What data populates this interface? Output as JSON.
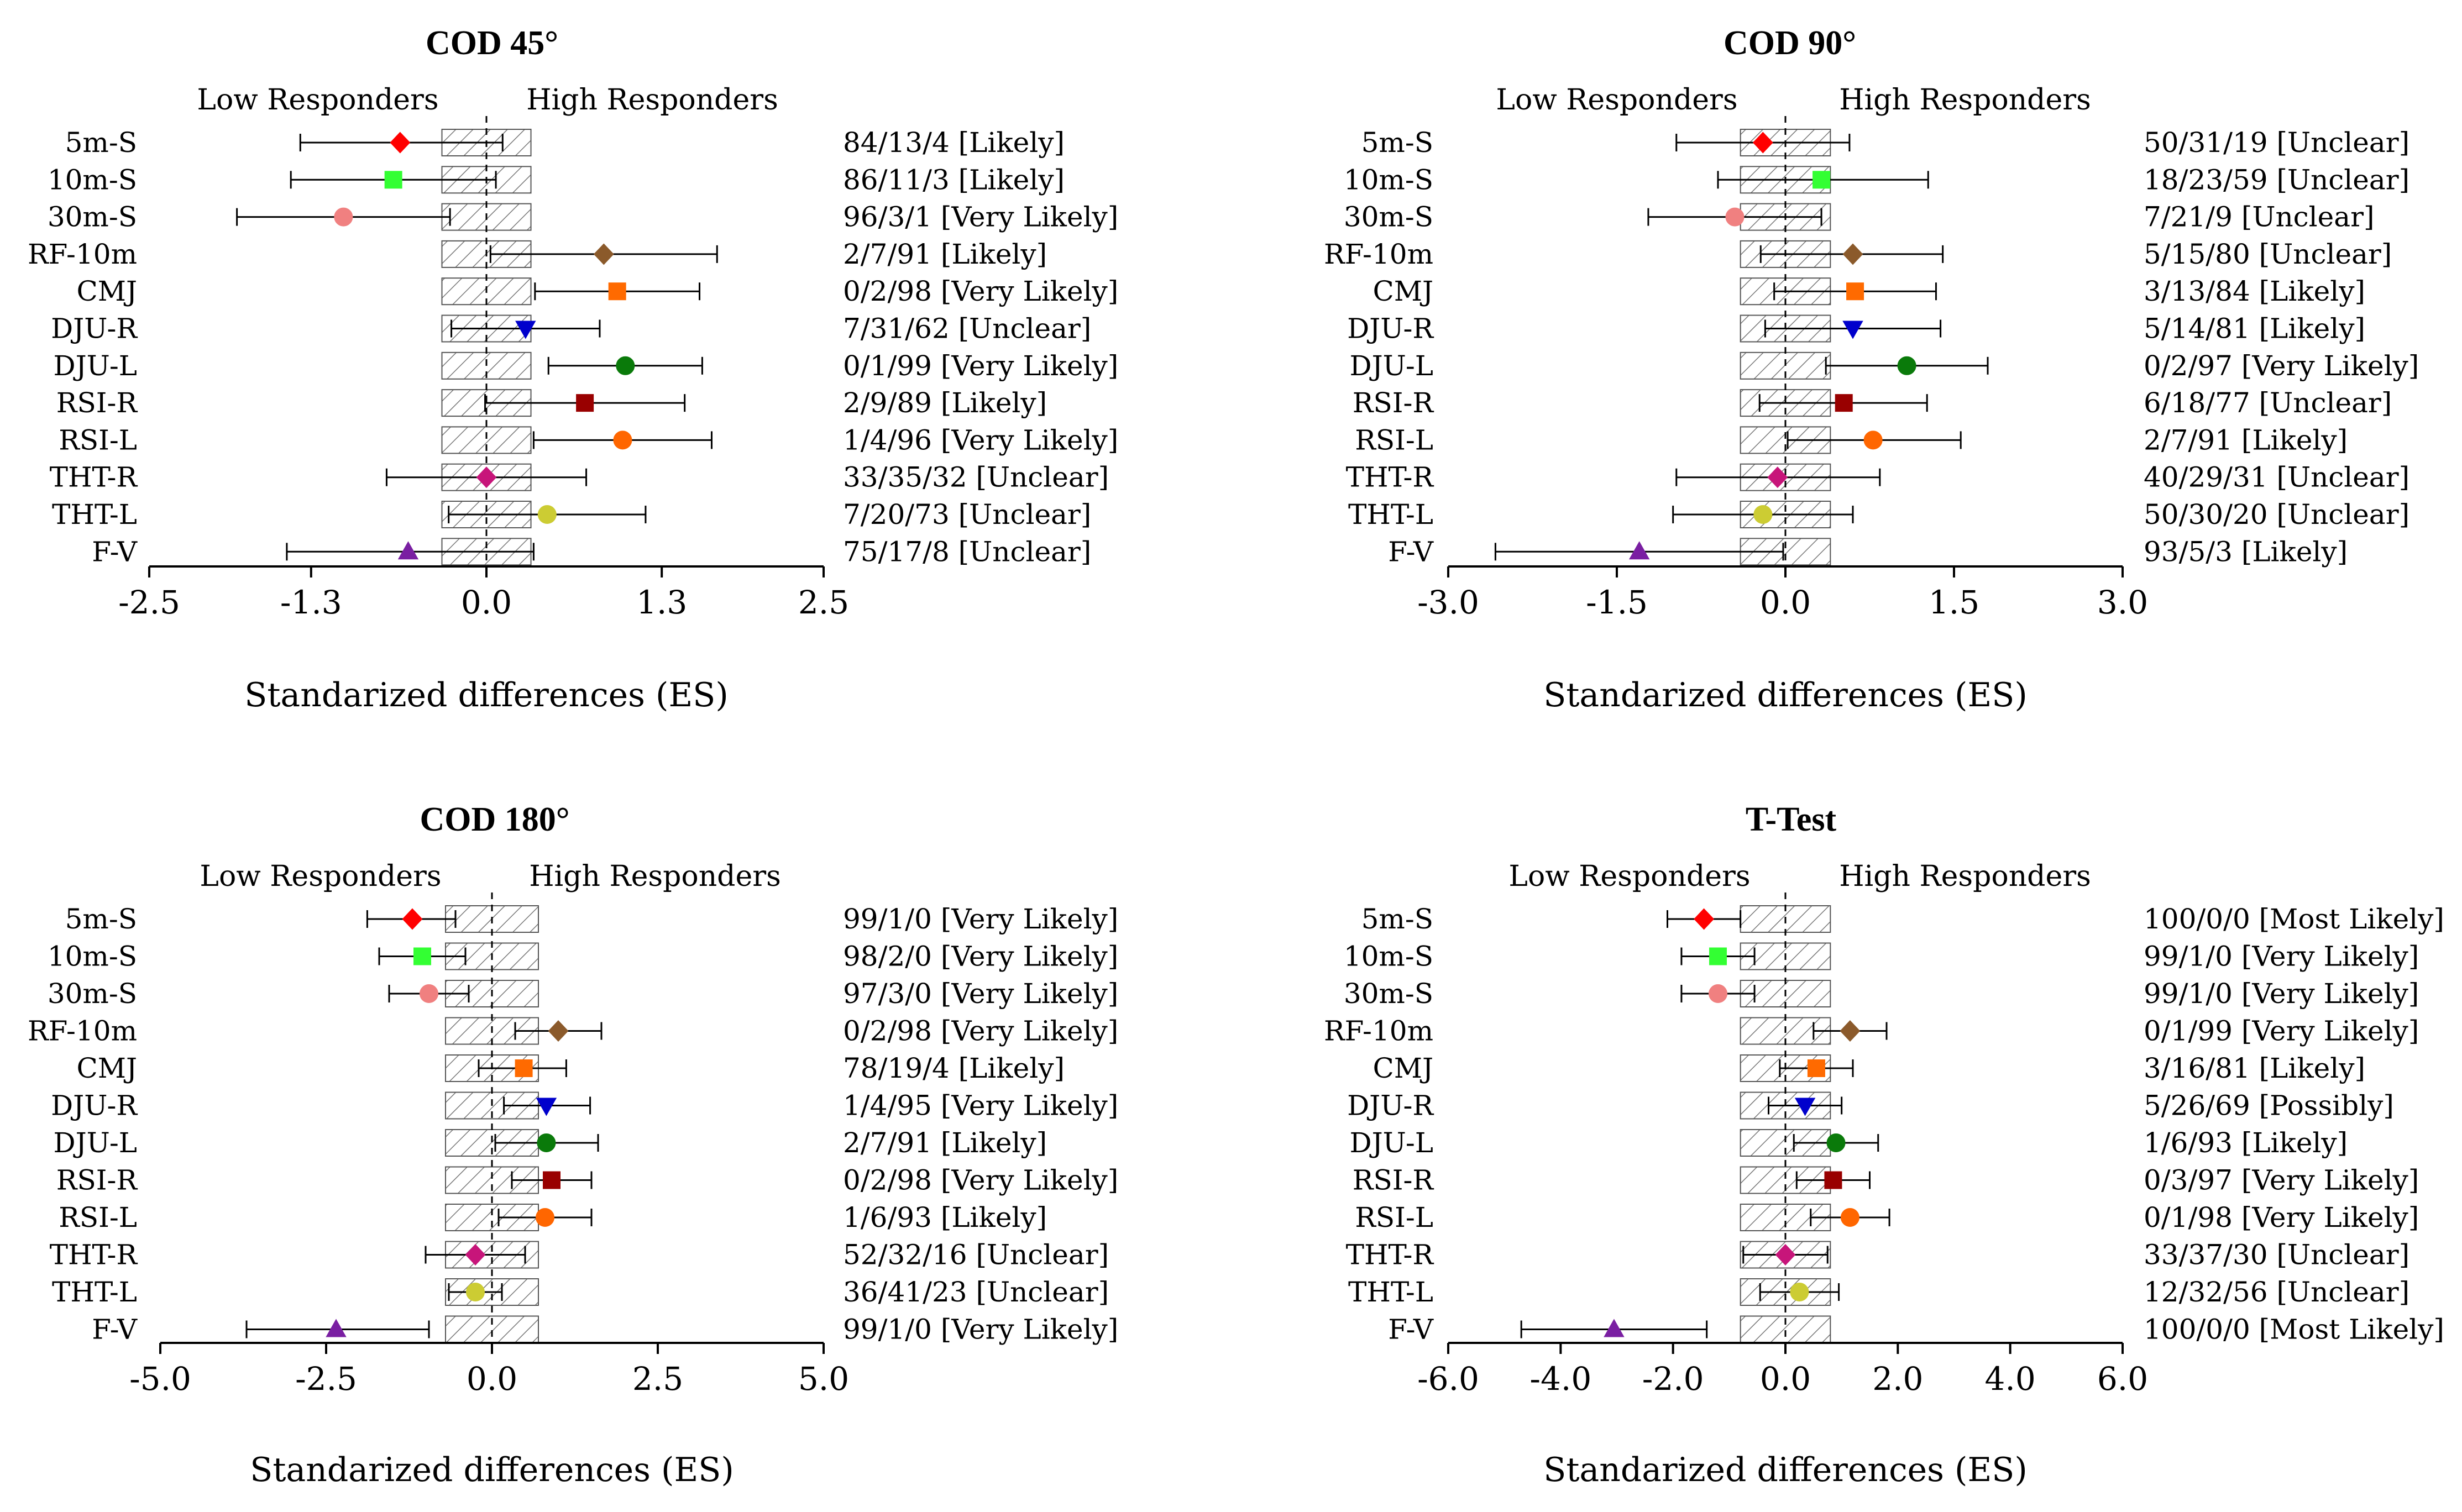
{
  "chart_data": [
    {
      "type": "forest",
      "title": "COD 45°",
      "left_label": "Low Responders",
      "right_label": "High Responders",
      "xlabel": "Standarized differences (ES)",
      "xlim": [
        -2.5,
        2.5
      ],
      "xticks": [
        -2.5,
        -1.3,
        0.0,
        1.3,
        2.5
      ],
      "xtick_labels": [
        "-2.5",
        "-1.3",
        "0.0",
        "1.3",
        "2.5"
      ],
      "trivial_band": [
        -0.33,
        0.33
      ],
      "categories": [
        "5m-S",
        "10m-S",
        "30m-S",
        "RF-10m",
        "CMJ",
        "DJU-R",
        "DJU-L",
        "RSI-R",
        "RSI-L",
        "THT-R",
        "THT-L",
        "F-V"
      ],
      "values": [
        -0.64,
        -0.69,
        -1.06,
        0.87,
        0.97,
        0.29,
        1.03,
        0.73,
        1.01,
        0.0,
        0.45,
        -0.58
      ],
      "ci_low": [
        -1.38,
        -1.45,
        -1.85,
        0.03,
        0.36,
        -0.26,
        0.46,
        -0.01,
        0.35,
        -0.74,
        -0.28,
        -1.48
      ],
      "ci_high": [
        0.12,
        0.07,
        -0.27,
        1.71,
        1.58,
        0.84,
        1.6,
        1.47,
        1.67,
        0.74,
        1.18,
        0.35
      ],
      "annotations": [
        "84/13/4  [Likely]",
        "86/11/3  [Likely]",
        "96/3/1  [Very Likely]",
        "2/7/91  [Likely]",
        "0/2/98  [Very Likely]",
        "7/31/62  [Unclear]",
        "0/1/99  [Very Likely]",
        "2/9/89  [Likely]",
        "1/4/96  [Very Likely]",
        "33/35/32  [Unclear]",
        "7/20/73  [Unclear]",
        "75/17/8  [Unclear]"
      ]
    },
    {
      "type": "forest",
      "title": "COD 90°",
      "left_label": "Low Responders",
      "right_label": "High Responders",
      "xlabel": "Standarized differences (ES)",
      "xlim": [
        -3.0,
        3.0
      ],
      "xticks": [
        -3.0,
        -1.5,
        0.0,
        1.5,
        3.0
      ],
      "xtick_labels": [
        "-3.0",
        "-1.5",
        "0.0",
        "1.5",
        "3.0"
      ],
      "trivial_band": [
        -0.4,
        0.4
      ],
      "categories": [
        "5m-S",
        "10m-S",
        "30m-S",
        "RF-10m",
        "CMJ",
        "DJU-R",
        "DJU-L",
        "RSI-R",
        "RSI-L",
        "THT-R",
        "THT-L",
        "F-V"
      ],
      "values": [
        -0.2,
        0.32,
        -0.45,
        0.6,
        0.62,
        0.6,
        1.08,
        0.52,
        0.78,
        -0.07,
        -0.2,
        -1.3
      ],
      "ci_low": [
        -0.97,
        -0.6,
        -1.22,
        -0.22,
        -0.1,
        -0.18,
        0.36,
        -0.23,
        0.02,
        -0.97,
        -1.0,
        -2.58
      ],
      "ci_high": [
        0.57,
        1.27,
        0.32,
        1.4,
        1.34,
        1.38,
        1.8,
        1.26,
        1.56,
        0.84,
        0.6,
        -0.02
      ],
      "annotations": [
        "50/31/19  [Unclear]",
        "18/23/59  [Unclear]",
        "7/21/9  [Unclear]",
        "5/15/80  [Unclear]",
        "3/13/84  [Likely]",
        "5/14/81  [Likely]",
        "0/2/97  [Very Likely]",
        "6/18/77  [Unclear]",
        "2/7/91  [Likely]",
        "40/29/31  [Unclear]",
        "50/30/20  [Unclear]",
        "93/5/3  [Likely]"
      ]
    },
    {
      "type": "forest",
      "title": "COD 180°",
      "left_label": "Low Responders",
      "right_label": "High Responders",
      "xlabel": "Standarized differences (ES)",
      "xlim": [
        -5.0,
        5.0
      ],
      "xticks": [
        -5.0,
        -2.5,
        0.0,
        2.5,
        5.0
      ],
      "xtick_labels": [
        "-5.0",
        "-2.5",
        "0.0",
        "2.5",
        "5.0"
      ],
      "trivial_band": [
        -0.7,
        0.7
      ],
      "categories": [
        "5m-S",
        "10m-S",
        "30m-S",
        "RF-10m",
        "CMJ",
        "DJU-R",
        "DJU-L",
        "RSI-R",
        "RSI-L",
        "THT-R",
        "THT-L",
        "F-V"
      ],
      "values": [
        -1.2,
        -1.05,
        -0.95,
        1.0,
        0.48,
        0.82,
        0.82,
        0.9,
        0.8,
        -0.25,
        -0.25,
        -2.35
      ],
      "ci_low": [
        -1.88,
        -1.7,
        -1.55,
        0.35,
        -0.2,
        0.18,
        0.05,
        0.3,
        0.1,
        -1.0,
        -0.65,
        -3.7
      ],
      "ci_high": [
        -0.55,
        -0.4,
        -0.35,
        1.65,
        1.12,
        1.48,
        1.6,
        1.5,
        1.5,
        0.5,
        0.15,
        -0.95
      ],
      "annotations": [
        "99/1/0  [Very Likely]",
        "98/2/0  [Very Likely]",
        "97/3/0  [Very Likely]",
        "0/2/98  [Very Likely]",
        "78/19/4  [Likely]",
        "1/4/95  [Very Likely]",
        "2/7/91  [Likely]",
        "0/2/98  [Very Likely]",
        "1/6/93  [Likely]",
        "52/32/16  [Unclear]",
        "36/41/23  [Unclear]",
        "99/1/0  [Very Likely]"
      ]
    },
    {
      "type": "forest",
      "title": "T-Test",
      "left_label": "Low Responders",
      "right_label": "High Responders",
      "xlabel": "Standarized differences (ES)",
      "xlim": [
        -6.0,
        6.0
      ],
      "xticks": [
        -6.0,
        -4.0,
        -2.0,
        0.0,
        2.0,
        4.0,
        6.0
      ],
      "xtick_labels": [
        "-6.0",
        "-4.0",
        "-2.0",
        "0.0",
        "2.0",
        "4.0",
        "6.0"
      ],
      "trivial_band": [
        -0.8,
        0.8
      ],
      "categories": [
        "5m-S",
        "10m-S",
        "30m-S",
        "RF-10m",
        "CMJ",
        "DJU-R",
        "DJU-L",
        "RSI-R",
        "RSI-L",
        "THT-R",
        "THT-L",
        "F-V"
      ],
      "values": [
        -1.45,
        -1.2,
        -1.2,
        1.15,
        0.55,
        0.35,
        0.9,
        0.85,
        1.15,
        0.0,
        0.25,
        -3.05
      ],
      "ci_low": [
        -2.1,
        -1.85,
        -1.85,
        0.5,
        -0.1,
        -0.3,
        0.15,
        0.2,
        0.45,
        -0.75,
        -0.45,
        -4.7
      ],
      "ci_high": [
        -0.8,
        -0.55,
        -0.55,
        1.8,
        1.2,
        1.0,
        1.65,
        1.5,
        1.85,
        0.75,
        0.95,
        -1.4
      ],
      "annotations": [
        "100/0/0  [Most Likely]",
        "99/1/0  [Very Likely]",
        "99/1/0  [Very Likely]",
        "0/1/99  [Very Likely]",
        "3/16/81  [Likely]",
        "5/26/69  [Possibly]",
        "1/6/93  [Likely]",
        "0/3/97  [Very Likely]",
        "0/1/98  [Very Likely]",
        "33/37/30  [Unclear]",
        "12/32/56  [Unclear]",
        "100/0/0  [Most Likely]"
      ]
    }
  ],
  "marker_styles": [
    {
      "shape": "diamond",
      "color": "#ff0000"
    },
    {
      "shape": "square",
      "color": "#33ff33"
    },
    {
      "shape": "circle",
      "color": "#f08080"
    },
    {
      "shape": "diamond",
      "color": "#8b5a2b"
    },
    {
      "shape": "square",
      "color": "#ff6a00"
    },
    {
      "shape": "triangle-down",
      "color": "#0000cc"
    },
    {
      "shape": "circle",
      "color": "#0a7a0a"
    },
    {
      "shape": "square",
      "color": "#990000"
    },
    {
      "shape": "circle",
      "color": "#ff6600"
    },
    {
      "shape": "diamond",
      "color": "#c7157a"
    },
    {
      "shape": "circle",
      "color": "#cccc33"
    },
    {
      "shape": "triangle-up",
      "color": "#7a1fa2"
    }
  ]
}
